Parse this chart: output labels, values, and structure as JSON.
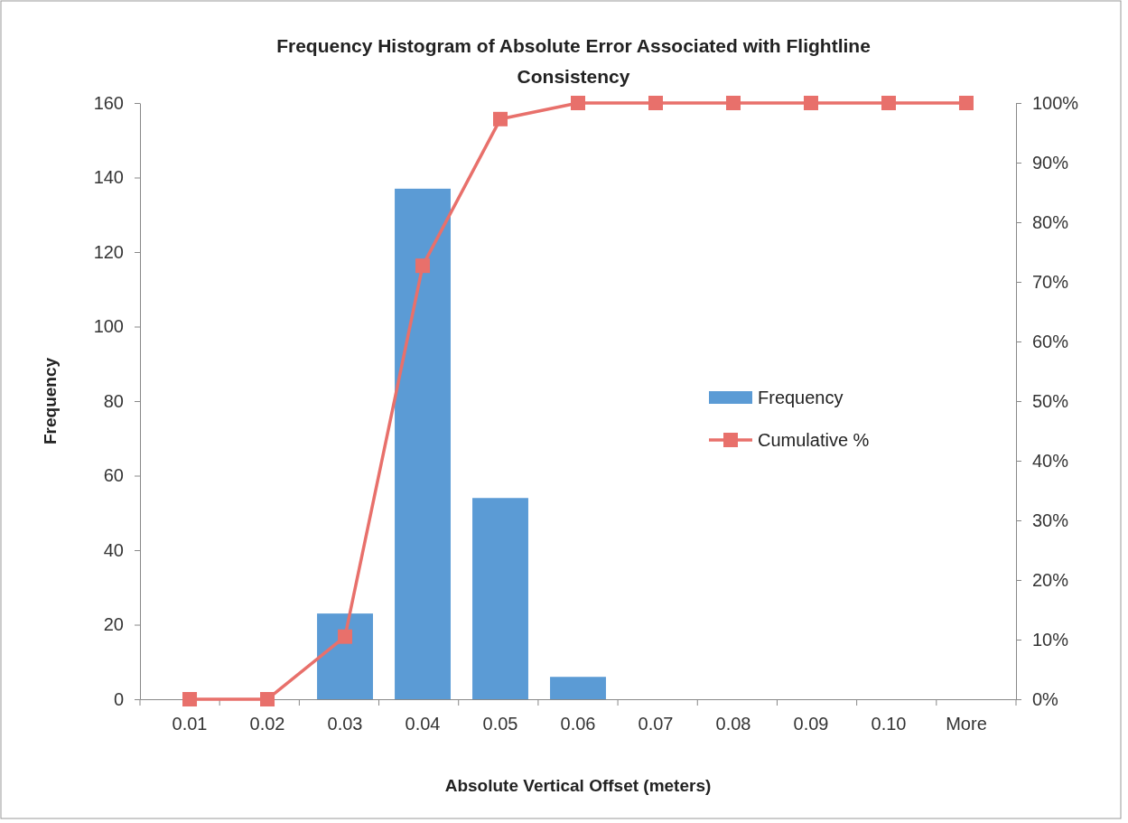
{
  "chart_data": {
    "type": "bar",
    "title": "Frequency Histogram of Absolute Error Associated with Flightline Consistency",
    "xlabel": "Absolute Vertical Offset (meters)",
    "ylabel": "Frequency",
    "categories": [
      "0.01",
      "0.02",
      "0.03",
      "0.04",
      "0.05",
      "0.06",
      "0.07",
      "0.08",
      "0.09",
      "0.10",
      "More"
    ],
    "series": [
      {
        "name": "Frequency",
        "color": "#5b9bd5",
        "values": [
          0,
          0,
          23,
          137,
          54,
          6,
          0,
          0,
          0,
          0,
          0
        ]
      },
      {
        "name": "Cumulative %",
        "type": "line",
        "axis": "y2",
        "color": "#e8706b",
        "marker": "square",
        "values": [
          0,
          0,
          10.5,
          72.7,
          97.3,
          100,
          100,
          100,
          100,
          100,
          100
        ]
      }
    ],
    "ylim": [
      0,
      160
    ],
    "yticks": [
      0,
      20,
      40,
      60,
      80,
      100,
      120,
      140,
      160
    ],
    "y2lim": [
      0,
      100
    ],
    "y2ticks": [
      {
        "value": 0,
        "label": "0%"
      },
      {
        "value": 10,
        "label": "10%"
      },
      {
        "value": 20,
        "label": "20%"
      },
      {
        "value": 30,
        "label": "30%"
      },
      {
        "value": 40,
        "label": "40%"
      },
      {
        "value": 50,
        "label": "50%"
      },
      {
        "value": 60,
        "label": "60%"
      },
      {
        "value": 70,
        "label": "70%"
      },
      {
        "value": 80,
        "label": "80%"
      },
      {
        "value": 90,
        "label": "90%"
      },
      {
        "value": 100,
        "label": "100%"
      }
    ],
    "legend": "right"
  }
}
